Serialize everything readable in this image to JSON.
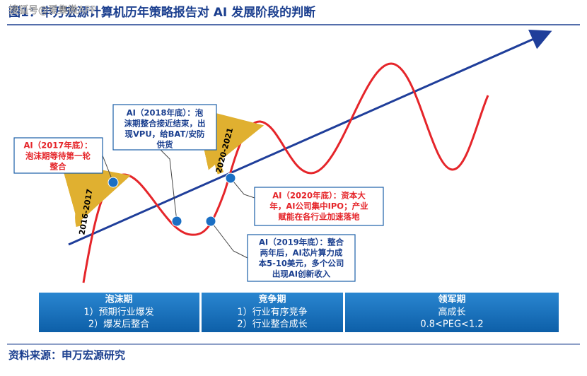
{
  "watermark": "搜狐号@爱集微APP",
  "title": "图1：申万宏源计算机历年策略报告对 AI 发展阶段的判断",
  "arrows": [
    "2016-2017",
    "2020-2021"
  ],
  "callouts": [
    {
      "lines": [
        "AI（2017年底）：",
        "泡沫期等待第一轮",
        "整合"
      ]
    },
    {
      "lines": [
        "AI（2018年底）：泡",
        "沫期整合接近结束，出",
        "现VPU，给BAT/安防",
        "供货"
      ]
    },
    {
      "lines": [
        "AI（2020年底）：资本大",
        "年，AI公司集中IPO；产业",
        "赋能在各行业加速落地"
      ]
    },
    {
      "lines": [
        "AI（2019年底）：整合",
        "两年后，AI芯片算力成",
        "本5-10美元，多个公司",
        "出现AI创新收入"
      ]
    }
  ],
  "phases": [
    {
      "name": "泡沫期",
      "lines": [
        "1）预期行业爆发",
        "2）爆发后整合"
      ]
    },
    {
      "name": "竞争期",
      "lines": [
        "1）行业有序竞争",
        "2）行业整合成长"
      ]
    },
    {
      "name": "领军期",
      "lines": [
        "高成长",
        "0.8<PEG<1.2"
      ]
    }
  ],
  "source": "资料来源：申万宏源研究"
}
